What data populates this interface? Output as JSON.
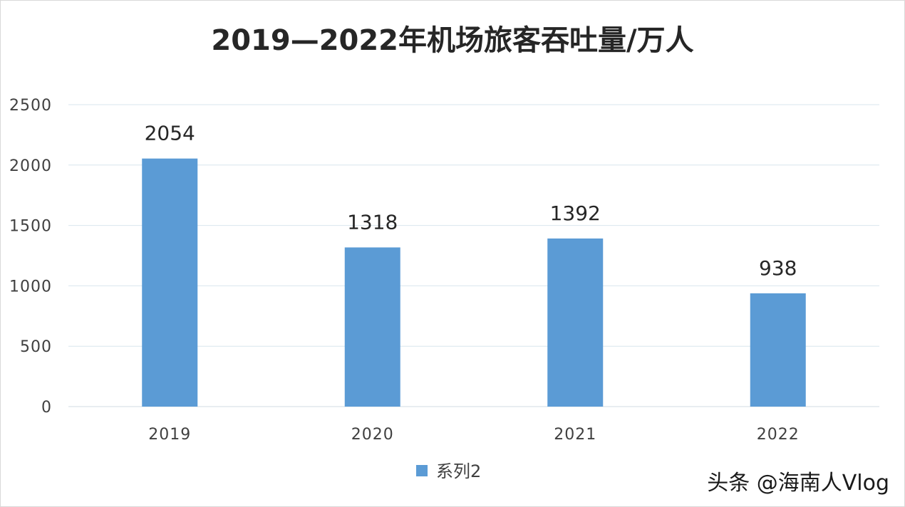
{
  "chart_data": {
    "type": "bar",
    "title": "2019—2022年机场旅客吞吐量/万人",
    "categories": [
      "2019",
      "2020",
      "2021",
      "2022"
    ],
    "series": [
      {
        "name": "系列2",
        "values": [
          2054,
          1318,
          1392,
          938
        ]
      }
    ],
    "ylim": [
      0,
      2500
    ],
    "yticks": [
      0,
      500,
      1000,
      1500,
      2000,
      2500
    ],
    "grid": true,
    "legend_position": "bottom",
    "bar_color": "#5b9bd5",
    "gridline_color": "#d9e6ee"
  },
  "watermark": {
    "text": "头条 @海南人Vlog"
  }
}
